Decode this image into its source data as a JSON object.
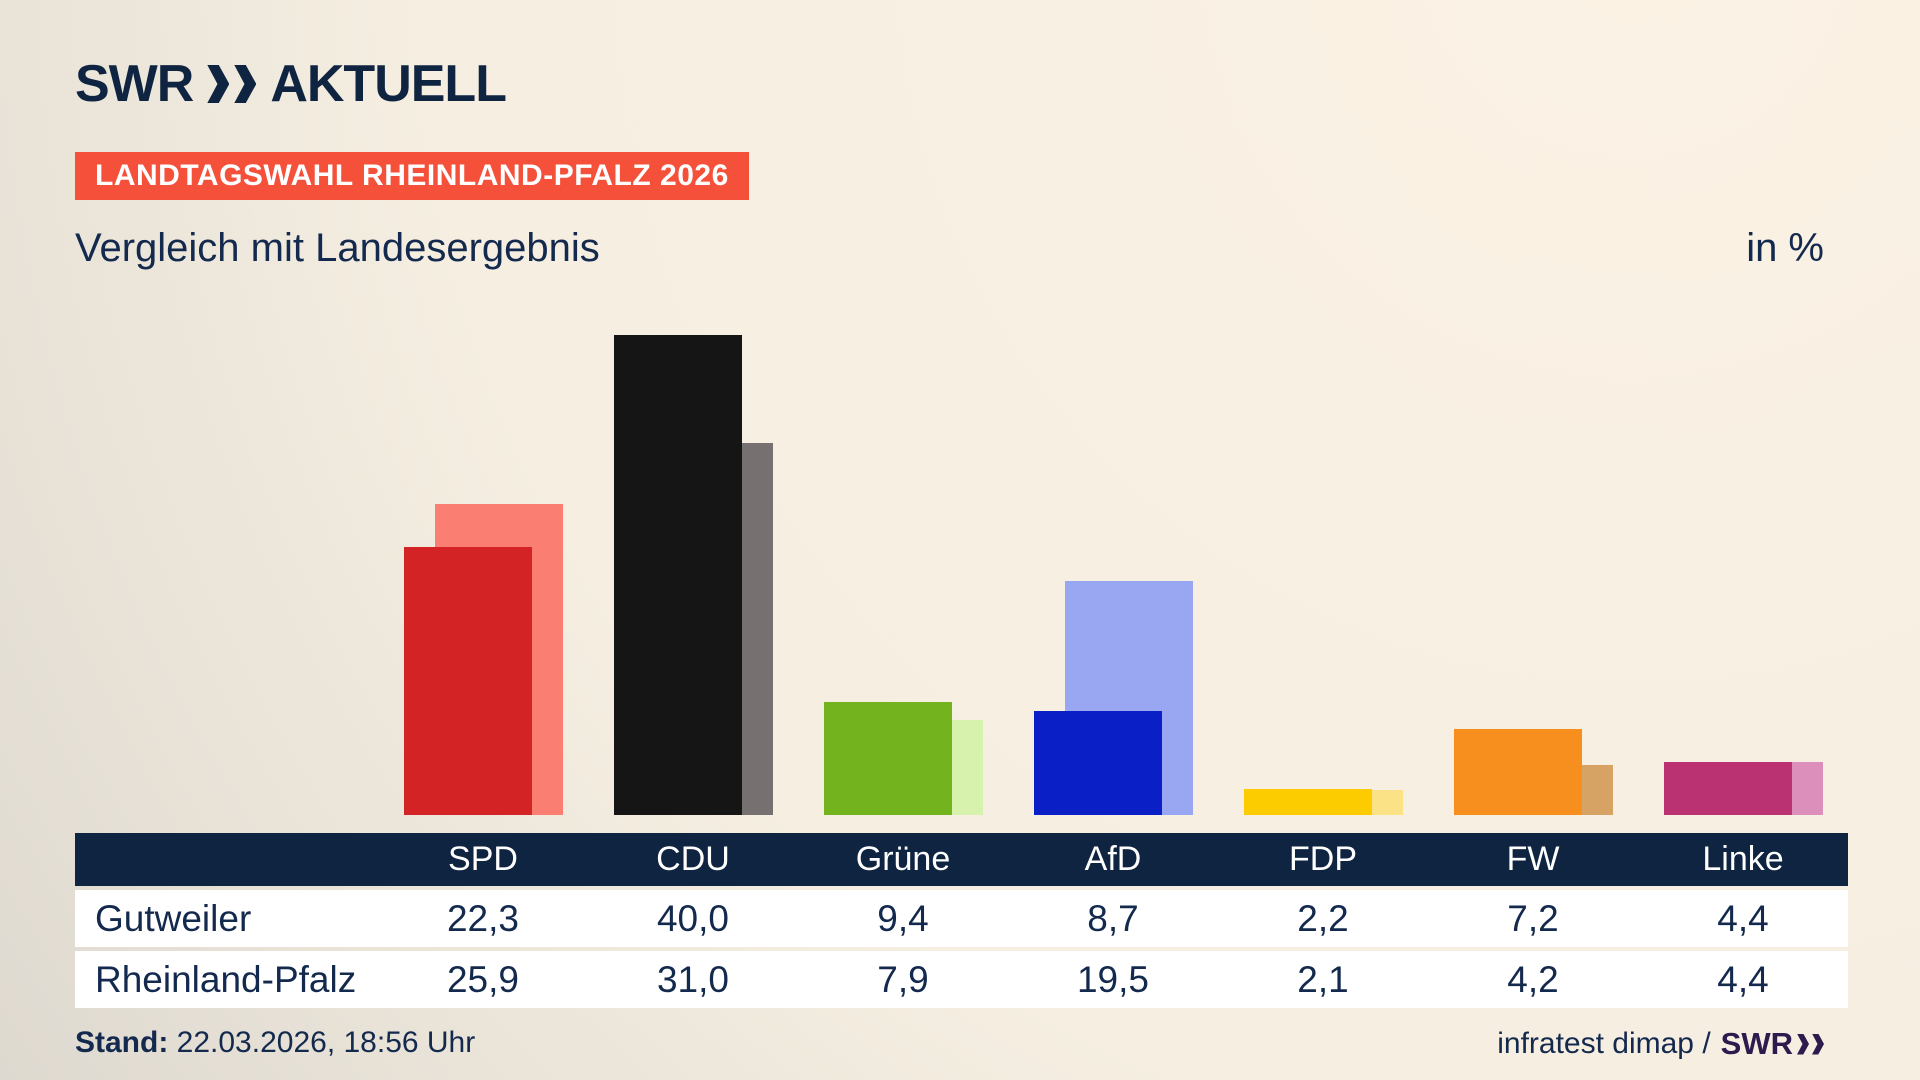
{
  "header": {
    "logo": {
      "swr": "SWR",
      "chevron": "double-chevron-right",
      "aktuell": "AKTUELL"
    },
    "badge": "LANDTAGSWAHL RHEINLAND-PFALZ 2026"
  },
  "title": "Vergleich mit Landesergebnis",
  "unit_label": "in %",
  "chart_data": {
    "type": "bar",
    "title": "Vergleich mit Landesergebnis",
    "unit": "in %",
    "categories": [
      "SPD",
      "CDU",
      "Grüne",
      "AfD",
      "FDP",
      "FW",
      "Linke"
    ],
    "series": [
      {
        "name": "Gutweiler",
        "values": [
          22.3,
          40.0,
          9.4,
          8.7,
          2.2,
          7.2,
          4.4
        ]
      },
      {
        "name": "Rheinland-Pfalz",
        "values": [
          25.9,
          31.0,
          7.9,
          19.5,
          2.1,
          4.2,
          4.4
        ]
      }
    ],
    "front_colors": [
      "#d42325",
      "#151515",
      "#72b31e",
      "#0a20c6",
      "#fdcc00",
      "#f78f1e",
      "#bb3273"
    ],
    "back_colors": [
      "#fa7e71",
      "#767170",
      "#d6f2ac",
      "#99a7f2",
      "#fce286",
      "#d7a365",
      "#dc8fbb"
    ],
    "ylim": [
      0,
      42
    ],
    "grid": false,
    "legend_position": "none",
    "value_format": "comma-decimal"
  },
  "table": {
    "columns": [
      "SPD",
      "CDU",
      "Grüne",
      "AfD",
      "FDP",
      "FW",
      "Linke"
    ],
    "rows": [
      {
        "label": "Gutweiler",
        "values": [
          "22,3",
          "40,0",
          "9,4",
          "8,7",
          "2,2",
          "7,2",
          "4,4"
        ]
      },
      {
        "label": "Rheinland-Pfalz",
        "values": [
          "25,9",
          "31,0",
          "7,9",
          "19,5",
          "2,1",
          "4,2",
          "4,4"
        ]
      }
    ]
  },
  "footer": {
    "stand_label": "Stand:",
    "stand_value": "22.03.2026, 18:56 Uhr",
    "source_text": "infratest dimap /",
    "source_logo": {
      "swr": "SWR",
      "chevron": "double-chevron-right"
    }
  },
  "colors": {
    "navy": "#0f2441",
    "text_navy": "#13294d",
    "badge_red": "#f4503a",
    "table_row_bg": "#ffffff",
    "header_text": "#ffffff",
    "footer_logo_purple": "#2e1a4c",
    "background_light": "#fbf2e4",
    "background_dark": "#b4b1ad"
  }
}
